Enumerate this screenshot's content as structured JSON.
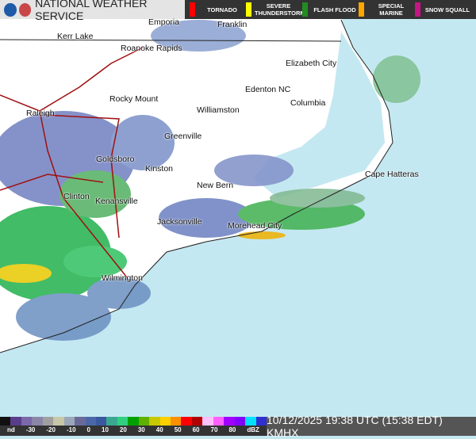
{
  "header": {
    "title": "NATIONAL WEATHER SERVICE",
    "warnings": [
      {
        "label": "TORNADO",
        "color": "#ff0000"
      },
      {
        "label": "SEVERE THUNDERSTORM",
        "color": "#ffff00"
      },
      {
        "label": "FLASH FLOOD",
        "color": "#228b22"
      },
      {
        "label": "SPECIAL MARINE",
        "color": "#ffa500"
      },
      {
        "label": "SNOW SQUALL",
        "color": "#c71585"
      }
    ]
  },
  "cities": [
    "Emporia",
    "Franklin",
    "Kerr Lake",
    "Roanoke Rapids",
    "Elizabeth City",
    "Rocky Mount",
    "Edenton NC",
    "Columbia",
    "Raleigh",
    "Williamston",
    "Greenville",
    "Goldsboro",
    "Kinston",
    "Cape Hatteras",
    "New Bern",
    "Clinton",
    "Kenansville",
    "Jacksonville",
    "Morehead City",
    "Wilmington"
  ],
  "legend": {
    "ticks": [
      "nd",
      "-30",
      "-20",
      "-10",
      "0",
      "10",
      "20",
      "30",
      "40",
      "50",
      "60",
      "70",
      "80",
      "dBZ"
    ],
    "colors": [
      "#111111",
      "#5a3d8a",
      "#7b68a8",
      "#8a86a8",
      "#a0a0a0",
      "#c8c8a8",
      "#9aa8b8",
      "#6a6a9a",
      "#4a68a8",
      "#3a58a0",
      "#3aa890",
      "#30d080",
      "#00a000",
      "#60b000",
      "#c8c800",
      "#ffd000",
      "#ff9000",
      "#ff0000",
      "#b00000",
      "#ffc0ff",
      "#ff60ff",
      "#a000ff",
      "#8000ff",
      "#00e0ff",
      "#3030d0"
    ]
  },
  "timestamp": "10/12/2025 19:38 UTC (15:38 EDT) KMHX"
}
